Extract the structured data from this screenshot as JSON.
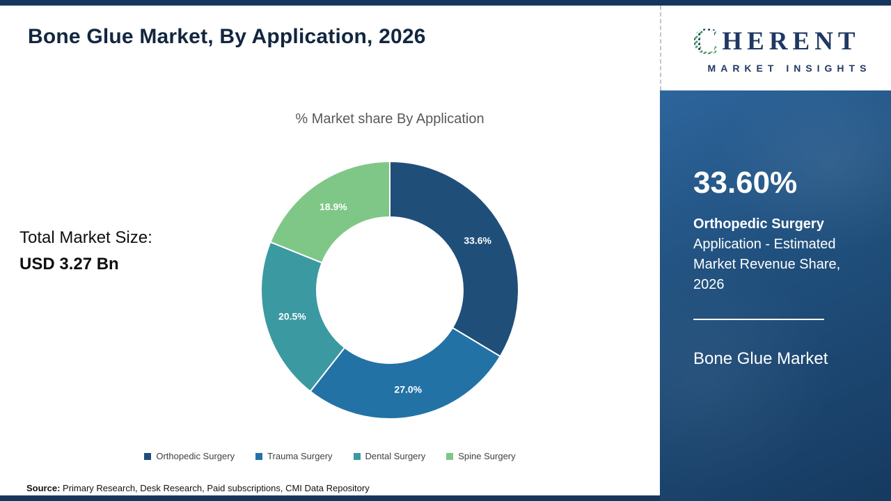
{
  "header": {
    "title": "Bone Glue Market, By Application, 2026"
  },
  "logo": {
    "c": "C",
    "word_rest": "HERENT",
    "subtitle": "MARKET INSIGHTS"
  },
  "chart_data": {
    "type": "donut",
    "title": "% Market share By Application",
    "categories": [
      "Orthopedic Surgery",
      "Trauma Surgery",
      "Dental Surgery",
      "Spine Surgery"
    ],
    "values": [
      33.6,
      27.0,
      20.5,
      18.9
    ],
    "value_labels": [
      "33.6%",
      "27.0%",
      "20.5%",
      "18.9%"
    ],
    "colors": [
      "#1F4E79",
      "#2272A6",
      "#3B99A1",
      "#7FC787"
    ],
    "legend_position": "bottom",
    "label_color": "#ffffff"
  },
  "market_size": {
    "label": "Total Market Size:",
    "value": "USD 3.27 Bn"
  },
  "source": {
    "label": "Source:",
    "text": " Primary Research, Desk Research, Paid subscriptions, CMI Data Repository"
  },
  "right_panel": {
    "stat_value": "33.60%",
    "stat_bold": "Orthopedic Surgery",
    "stat_desc_rest": " Application - Estimated Market Revenue Share, 2026",
    "market_name": "Bone Glue Market"
  }
}
